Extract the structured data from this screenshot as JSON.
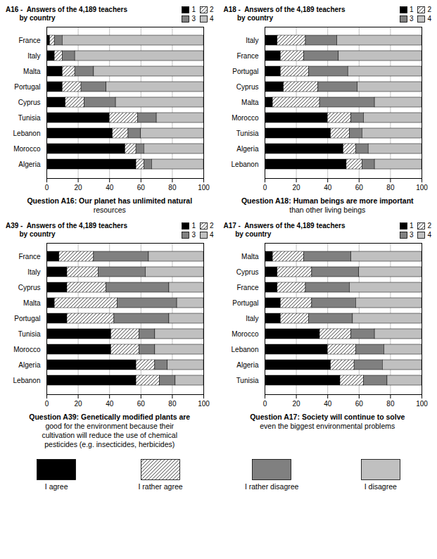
{
  "chart_data": [
    {
      "type": "bar",
      "orientation": "horizontal",
      "stacked": true,
      "title": "A16 -  Answers of the 4,189 teachers\n       by country",
      "caption": "Question A16: Our planet has unlimited natural\nresources",
      "categories": [
        "Algeria",
        "Morocco",
        "Lebanon",
        "Tunisia",
        "Cyprus",
        "Portugal",
        "Malta",
        "Italy",
        "France"
      ],
      "series": [
        {
          "name": "1",
          "color": "#000000",
          "values": [
            57,
            50,
            42,
            40,
            12,
            10,
            10,
            5,
            2
          ]
        },
        {
          "name": "2",
          "color": "#ffffff",
          "values": [
            5,
            7,
            10,
            18,
            12,
            12,
            8,
            5,
            3
          ]
        },
        {
          "name": "3",
          "color": "#808080",
          "values": [
            5,
            5,
            8,
            12,
            20,
            16,
            12,
            8,
            5
          ]
        },
        {
          "name": "4",
          "color": "#c0c0c0",
          "values": [
            33,
            38,
            40,
            30,
            56,
            62,
            70,
            82,
            90
          ]
        }
      ],
      "xlim": [
        0,
        100
      ],
      "xticks": [
        0,
        20,
        40,
        60,
        80,
        100
      ],
      "grid": true,
      "legend": "upper right"
    },
    {
      "type": "bar",
      "orientation": "horizontal",
      "stacked": true,
      "title": "A18 -  Answers of the 4,189 teachers\n       by country",
      "caption": "Question A18: Human beings are more important\nthan other living beings",
      "categories": [
        "Lebanon",
        "Algeria",
        "Tunisia",
        "Morocco",
        "Malta",
        "Cyprus",
        "Portugal",
        "France",
        "Italy"
      ],
      "series": [
        {
          "name": "1",
          "color": "#000000",
          "values": [
            52,
            50,
            42,
            40,
            5,
            12,
            10,
            10,
            8
          ]
        },
        {
          "name": "2",
          "color": "#ffffff",
          "values": [
            10,
            8,
            12,
            15,
            30,
            22,
            18,
            15,
            18
          ]
        },
        {
          "name": "3",
          "color": "#808080",
          "values": [
            8,
            8,
            8,
            8,
            35,
            25,
            25,
            22,
            20
          ]
        },
        {
          "name": "4",
          "color": "#c0c0c0",
          "values": [
            30,
            34,
            38,
            37,
            30,
            41,
            47,
            53,
            54
          ]
        }
      ],
      "xlim": [
        0,
        100
      ],
      "xticks": [
        0,
        20,
        40,
        60,
        80,
        100
      ],
      "grid": true,
      "legend": "upper right"
    },
    {
      "type": "bar",
      "orientation": "horizontal",
      "stacked": true,
      "title": "A39 -  Answers of the 4,189 teachers\n       by country",
      "caption": "Question A39: Genetically modified plants are\ngood for the environment because their\ncultivation will reduce the use of chemical\npesticides (e.g. insecticides, herbicides)",
      "categories": [
        "Lebanon",
        "Algeria",
        "Morocco",
        "Tunisia",
        "Portugal",
        "Malta",
        "Cyprus",
        "Italy",
        "France"
      ],
      "series": [
        {
          "name": "1",
          "color": "#000000",
          "values": [
            57,
            57,
            41,
            41,
            13,
            5,
            13,
            13,
            8
          ]
        },
        {
          "name": "2",
          "color": "#ffffff",
          "values": [
            15,
            12,
            18,
            18,
            30,
            40,
            25,
            20,
            22
          ]
        },
        {
          "name": "3",
          "color": "#808080",
          "values": [
            10,
            8,
            10,
            10,
            35,
            38,
            40,
            30,
            35
          ]
        },
        {
          "name": "4",
          "color": "#c0c0c0",
          "values": [
            18,
            23,
            31,
            31,
            22,
            17,
            22,
            37,
            35
          ]
        }
      ],
      "xlim": [
        0,
        100
      ],
      "xticks": [
        0,
        20,
        40,
        60,
        80,
        100
      ],
      "grid": true,
      "legend": "upper right"
    },
    {
      "type": "bar",
      "orientation": "horizontal",
      "stacked": true,
      "title": "A17 -  Answers of the 4,189 teachers\n      by country",
      "caption": "Question A17: Society will continue to solve\neven the biggest environmental problems",
      "categories": [
        "Tunisia",
        "Algeria",
        "Lebanon",
        "Morocco",
        "Italy",
        "Portugal",
        "France",
        "Cyprus",
        "Malta"
      ],
      "series": [
        {
          "name": "1",
          "color": "#000000",
          "values": [
            48,
            42,
            40,
            35,
            10,
            10,
            8,
            8,
            5
          ]
        },
        {
          "name": "2",
          "color": "#ffffff",
          "values": [
            15,
            15,
            18,
            20,
            18,
            20,
            18,
            22,
            20
          ]
        },
        {
          "name": "3",
          "color": "#808080",
          "values": [
            15,
            18,
            18,
            15,
            28,
            28,
            28,
            30,
            30
          ]
        },
        {
          "name": "4",
          "color": "#c0c0c0",
          "values": [
            22,
            25,
            24,
            30,
            44,
            42,
            46,
            40,
            45
          ]
        }
      ],
      "xlim": [
        0,
        100
      ],
      "xticks": [
        0,
        20,
        40,
        60,
        80,
        100
      ],
      "grid": true,
      "legend": "upper right"
    }
  ],
  "annotations": [
    {
      "text": "I agree",
      "color": "#000000"
    },
    {
      "text": "I rather agree",
      "color": "#ffffff"
    },
    {
      "text": "I rather disagree",
      "color": "#808080"
    },
    {
      "text": "I disagree",
      "color": "#c0c0c0"
    }
  ]
}
